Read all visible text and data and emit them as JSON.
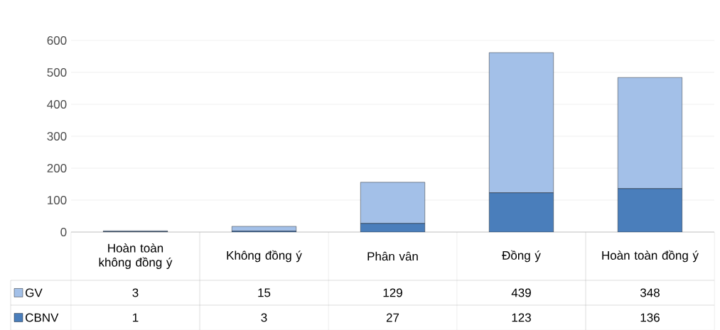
{
  "chart_data": {
    "type": "bar",
    "stacked": true,
    "categories": [
      "Hoàn toàn không đồng ý",
      "Không đồng ý",
      "Phân vân",
      "Đồng ý",
      "Hoàn toàn đồng ý"
    ],
    "series": [
      {
        "name": "CBNV",
        "color": "#4a7ebb",
        "values": [
          1,
          3,
          27,
          123,
          136
        ]
      },
      {
        "name": "GV",
        "color": "#a3c0e8",
        "values": [
          3,
          15,
          129,
          439,
          348
        ]
      }
    ],
    "ylim": [
      0,
      600
    ],
    "yticks": [
      0,
      100,
      200,
      300,
      400,
      500,
      600
    ],
    "grid": "y",
    "legend": "bottom",
    "data_labels": true
  }
}
